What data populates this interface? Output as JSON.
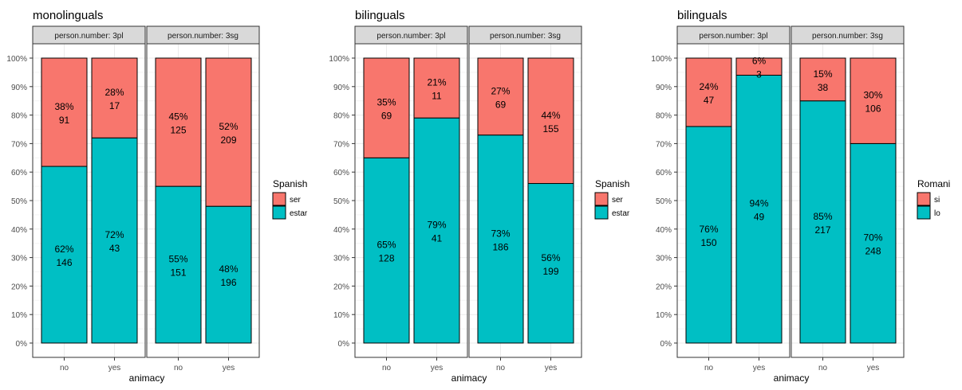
{
  "chart_data": [
    {
      "type": "bar",
      "title": "monolinguals",
      "xlabel": "animacy",
      "ylabel": "",
      "ylim": [
        0,
        100
      ],
      "y_ticks": [
        "0%",
        "10%",
        "20%",
        "30%",
        "40%",
        "50%",
        "60%",
        "70%",
        "80%",
        "90%",
        "100%"
      ],
      "categories": [
        "no",
        "yes"
      ],
      "legend": {
        "title": "Spanish",
        "placement": "right",
        "entries": [
          "ser",
          "estar"
        ]
      },
      "colors": {
        "top": "#F8766D",
        "bottom": "#00BFC4"
      },
      "facets": [
        {
          "strip": "person.number: 3pl",
          "series": [
            {
              "name": "ser",
              "values": [
                38,
                28
              ],
              "labels": [
                "38%",
                "28%"
              ],
              "counts": [
                "91",
                "17"
              ]
            },
            {
              "name": "estar",
              "values": [
                62,
                72
              ],
              "labels": [
                "62%",
                "72%"
              ],
              "counts": [
                "146",
                "43"
              ]
            }
          ]
        },
        {
          "strip": "person.number: 3sg",
          "series": [
            {
              "name": "ser",
              "values": [
                45,
                52
              ],
              "labels": [
                "45%",
                "52%"
              ],
              "counts": [
                "125",
                "209"
              ]
            },
            {
              "name": "estar",
              "values": [
                55,
                48
              ],
              "labels": [
                "55%",
                "48%"
              ],
              "counts": [
                "151",
                "196"
              ]
            }
          ]
        }
      ]
    },
    {
      "type": "bar",
      "title": "bilinguals",
      "xlabel": "animacy",
      "ylabel": "",
      "ylim": [
        0,
        100
      ],
      "y_ticks": [
        "0%",
        "10%",
        "20%",
        "30%",
        "40%",
        "50%",
        "60%",
        "70%",
        "80%",
        "90%",
        "100%"
      ],
      "categories": [
        "no",
        "yes"
      ],
      "legend": {
        "title": "Spanish",
        "placement": "right",
        "entries": [
          "ser",
          "estar"
        ]
      },
      "colors": {
        "top": "#F8766D",
        "bottom": "#00BFC4"
      },
      "facets": [
        {
          "strip": "person.number: 3pl",
          "series": [
            {
              "name": "ser",
              "values": [
                35,
                21
              ],
              "labels": [
                "35%",
                "21%"
              ],
              "counts": [
                "69",
                "11"
              ]
            },
            {
              "name": "estar",
              "values": [
                65,
                79
              ],
              "labels": [
                "65%",
                "79%"
              ],
              "counts": [
                "128",
                "41"
              ]
            }
          ]
        },
        {
          "strip": "person.number: 3sg",
          "series": [
            {
              "name": "ser",
              "values": [
                27,
                44
              ],
              "labels": [
                "27%",
                "44%"
              ],
              "counts": [
                "69",
                "155"
              ]
            },
            {
              "name": "estar",
              "values": [
                73,
                56
              ],
              "labels": [
                "73%",
                "56%"
              ],
              "counts": [
                "186",
                "199"
              ]
            }
          ]
        }
      ]
    },
    {
      "type": "bar",
      "title": "bilinguals",
      "xlabel": "animacy",
      "ylabel": "",
      "ylim": [
        0,
        100
      ],
      "y_ticks": [
        "0%",
        "10%",
        "20%",
        "30%",
        "40%",
        "50%",
        "60%",
        "70%",
        "80%",
        "90%",
        "100%"
      ],
      "categories": [
        "no",
        "yes"
      ],
      "legend": {
        "title": "Romani",
        "placement": "right",
        "entries": [
          "si",
          "lo"
        ]
      },
      "colors": {
        "top": "#F8766D",
        "bottom": "#00BFC4"
      },
      "facets": [
        {
          "strip": "person.number: 3pl",
          "series": [
            {
              "name": "si",
              "values": [
                24,
                6
              ],
              "labels": [
                "24%",
                "6%"
              ],
              "counts": [
                "47",
                "3"
              ]
            },
            {
              "name": "lo",
              "values": [
                76,
                94
              ],
              "labels": [
                "76%",
                "94%"
              ],
              "counts": [
                "150",
                "49"
              ]
            }
          ]
        },
        {
          "strip": "person.number: 3sg",
          "series": [
            {
              "name": "si",
              "values": [
                15,
                30
              ],
              "labels": [
                "15%",
                "30%"
              ],
              "counts": [
                "38",
                "106"
              ]
            },
            {
              "name": "lo",
              "values": [
                85,
                70
              ],
              "labels": [
                "85%",
                "70%"
              ],
              "counts": [
                "217",
                "248"
              ]
            }
          ]
        }
      ]
    }
  ]
}
